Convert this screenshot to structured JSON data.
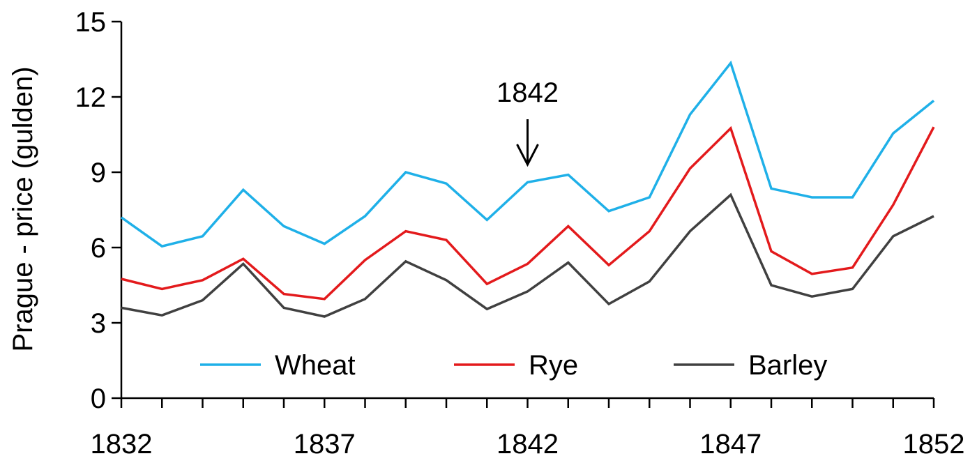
{
  "chart_data": {
    "type": "line",
    "title": "",
    "xlabel": "",
    "ylabel": "Prague - price (gulden)",
    "xlim": [
      1832,
      1852
    ],
    "ylim": [
      0,
      15
    ],
    "x_ticks": [
      1832,
      1837,
      1842,
      1847,
      1852
    ],
    "y_ticks": [
      0,
      3,
      6,
      9,
      12,
      15
    ],
    "grid": false,
    "legend_position": "bottom",
    "x": [
      1832,
      1833,
      1834,
      1835,
      1836,
      1837,
      1838,
      1839,
      1840,
      1841,
      1842,
      1843,
      1844,
      1845,
      1846,
      1847,
      1848,
      1849,
      1850,
      1851,
      1852
    ],
    "series": [
      {
        "name": "Wheat",
        "color": "#1fb0e8",
        "values": [
          7.2,
          6.05,
          6.45,
          8.3,
          6.85,
          6.15,
          7.25,
          9.0,
          8.55,
          7.1,
          8.6,
          8.9,
          7.45,
          8.0,
          11.3,
          13.35,
          8.35,
          8.0,
          8.0,
          10.55,
          11.85
        ]
      },
      {
        "name": "Rye",
        "color": "#e31a1c",
        "values": [
          4.75,
          4.35,
          4.7,
          5.55,
          4.15,
          3.95,
          5.5,
          6.65,
          6.3,
          4.55,
          5.35,
          6.85,
          5.3,
          6.65,
          9.15,
          10.75,
          5.85,
          4.95,
          5.2,
          7.7,
          10.8
        ]
      },
      {
        "name": "Barley",
        "color": "#404040",
        "values": [
          3.6,
          3.3,
          3.9,
          5.35,
          3.6,
          3.25,
          3.95,
          5.45,
          4.7,
          3.55,
          4.25,
          5.4,
          3.75,
          4.65,
          6.65,
          8.1,
          4.5,
          4.05,
          4.35,
          6.45,
          7.25
        ]
      }
    ],
    "annotations": [
      {
        "text": "1842",
        "x": 1842,
        "arrow": "down"
      }
    ]
  }
}
